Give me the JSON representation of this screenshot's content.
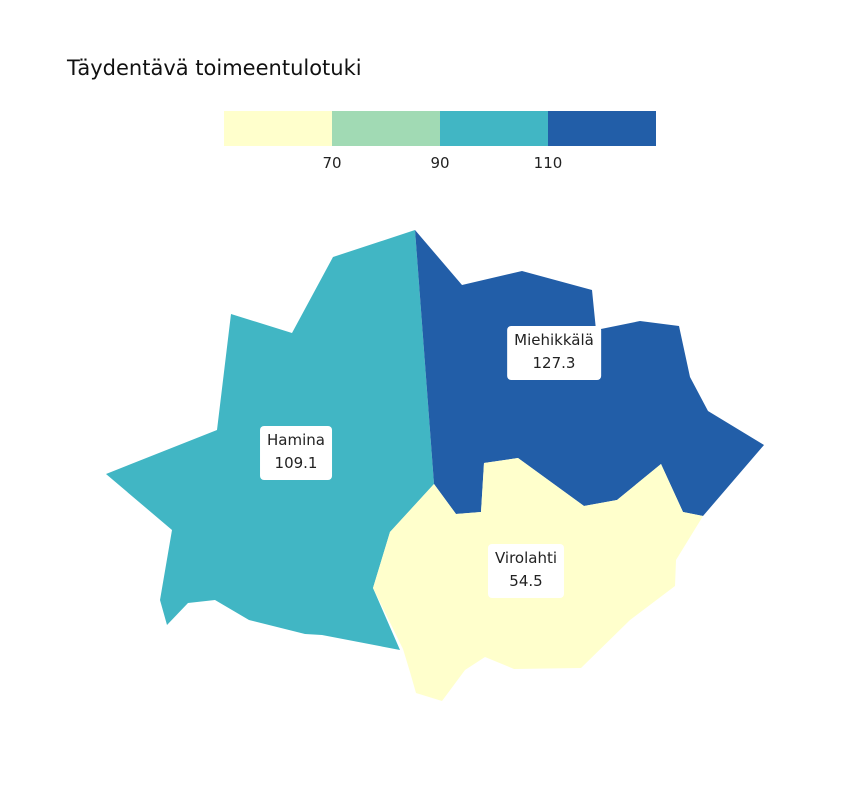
{
  "title": "Täydentävä toimeentulotuki",
  "legend": {
    "colors": [
      "#ffffcc",
      "#a1dab4",
      "#41b6c4",
      "#225ea8"
    ],
    "ticks": [
      "70",
      "90",
      "110"
    ]
  },
  "regions": [
    {
      "id": "hamina",
      "name": "Hamina",
      "value": "109.1",
      "color": "#41b6c4"
    },
    {
      "id": "miehikkala",
      "name": "Miehikkälä",
      "value": "127.3",
      "color": "#225ea8"
    },
    {
      "id": "virolahti",
      "name": "Virolahti",
      "value": "54.5",
      "color": "#ffffcc"
    }
  ]
}
